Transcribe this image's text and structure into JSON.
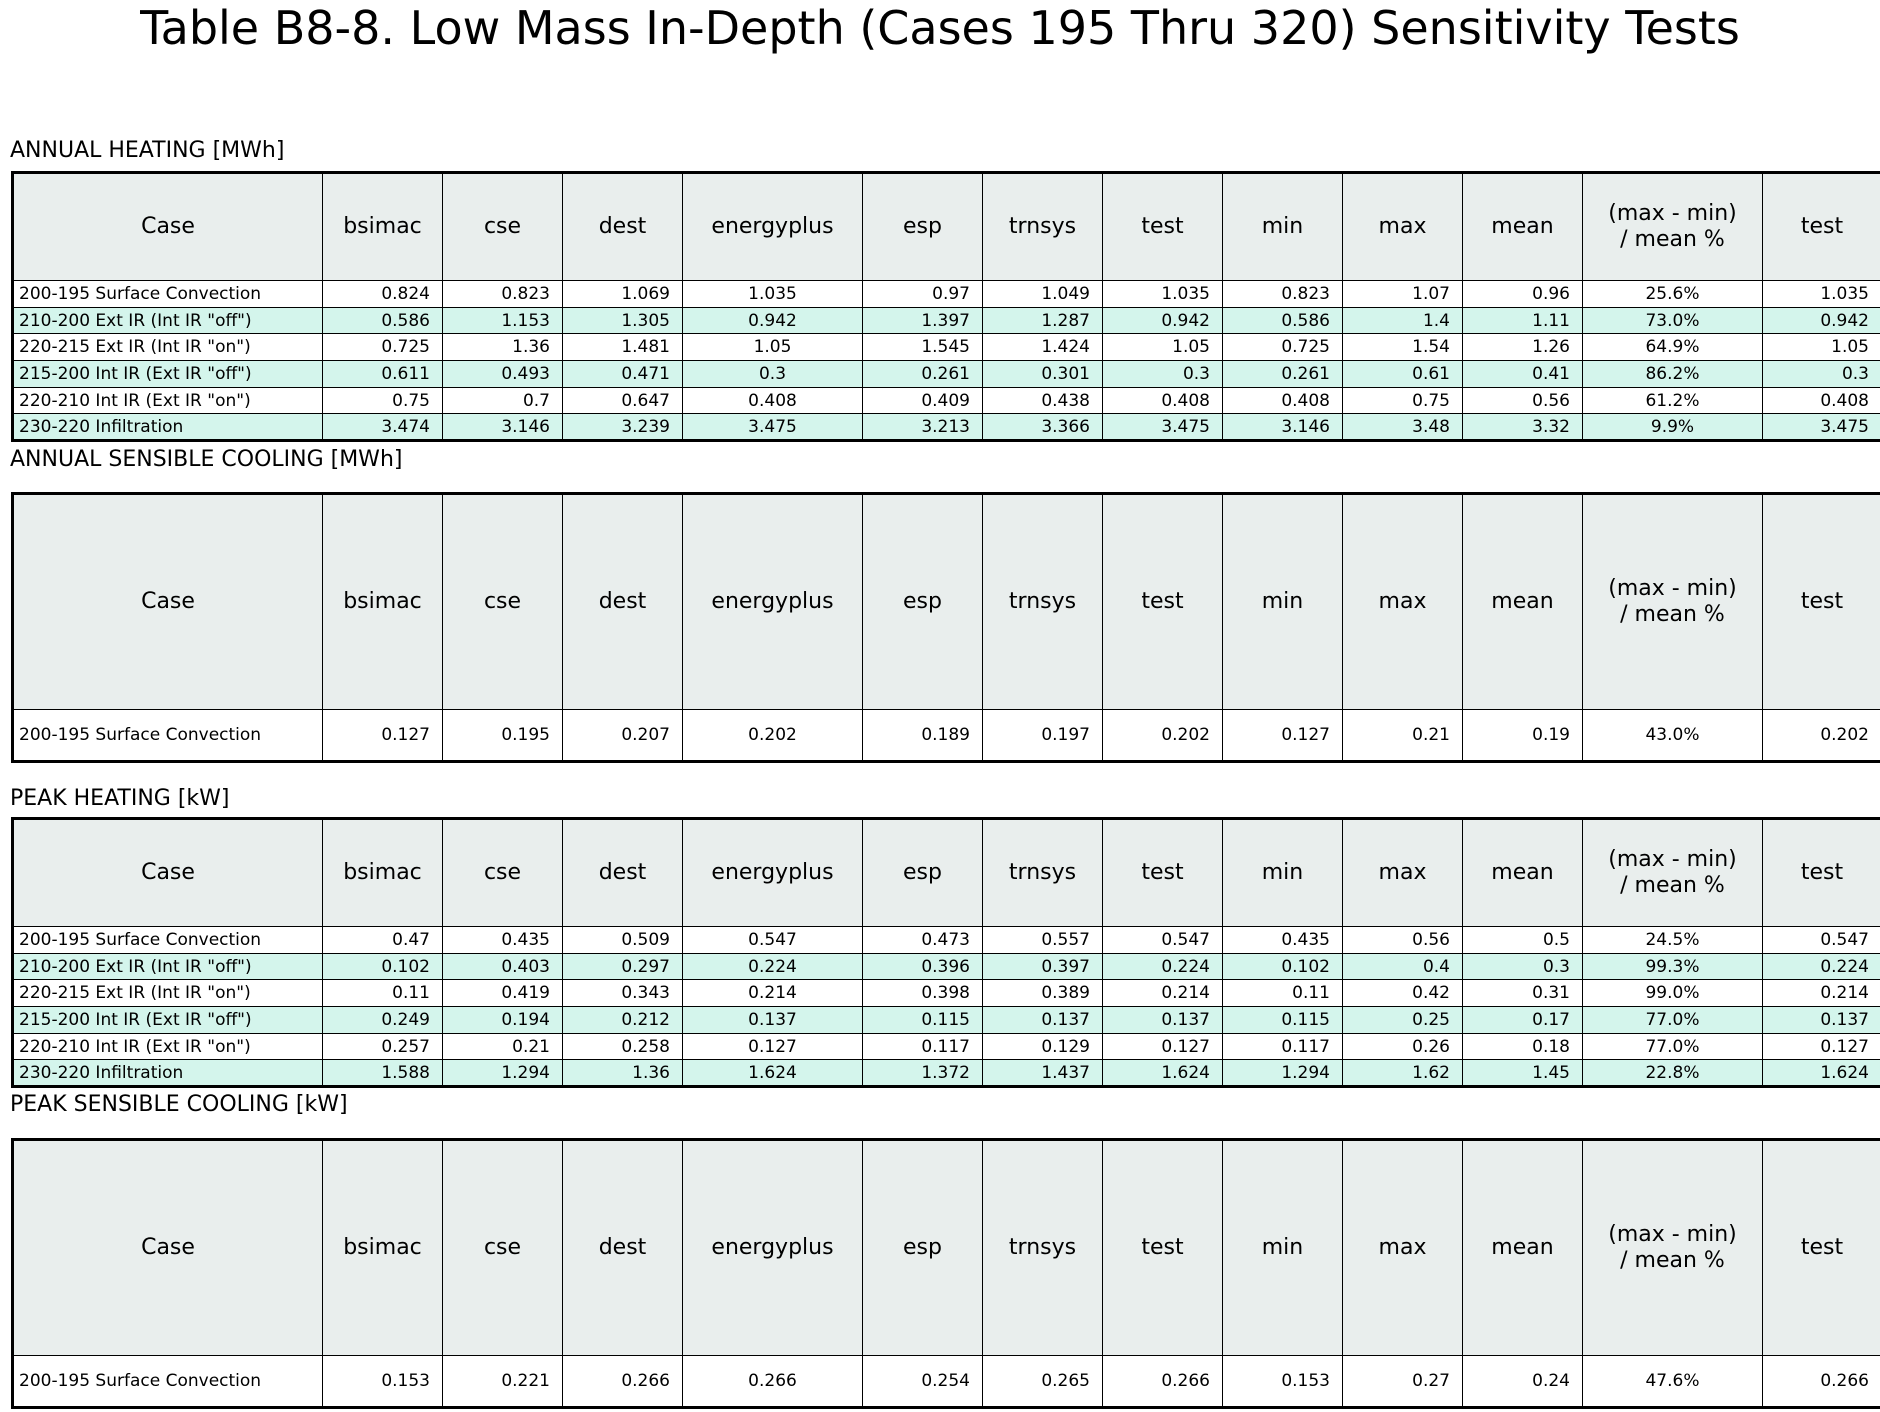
{
  "title": "Table B8-8. Low Mass In-Depth (Cases 195 Thru 320) Sensitivity Tests",
  "columns": [
    "Case",
    "bsimac",
    "cse",
    "dest",
    "energyplus",
    "esp",
    "trnsys",
    "test",
    "min",
    "max",
    "mean",
    "(max - min)\n/ mean %",
    "test"
  ],
  "sections": [
    {
      "label": "ANNUAL HEATING [MWh]",
      "rows": [
        [
          "200-195 Surface Convection",
          "0.824",
          "0.823",
          "1.069",
          "1.035",
          "0.97",
          "1.049",
          "1.035",
          "0.823",
          "1.07",
          "0.96",
          "25.6%",
          "1.035"
        ],
        [
          "210-200 Ext IR (Int IR \"off\")",
          "0.586",
          "1.153",
          "1.305",
          "0.942",
          "1.397",
          "1.287",
          "0.942",
          "0.586",
          "1.4",
          "1.11",
          "73.0%",
          "0.942"
        ],
        [
          "220-215 Ext IR (Int IR \"on\")",
          "0.725",
          "1.36",
          "1.481",
          "1.05",
          "1.545",
          "1.424",
          "1.05",
          "0.725",
          "1.54",
          "1.26",
          "64.9%",
          "1.05"
        ],
        [
          "215-200 Int IR (Ext IR \"off\")",
          "0.611",
          "0.493",
          "0.471",
          "0.3",
          "0.261",
          "0.301",
          "0.3",
          "0.261",
          "0.61",
          "0.41",
          "86.2%",
          "0.3"
        ],
        [
          "220-210 Int IR (Ext IR \"on\")",
          "0.75",
          "0.7",
          "0.647",
          "0.408",
          "0.409",
          "0.438",
          "0.408",
          "0.408",
          "0.75",
          "0.56",
          "61.2%",
          "0.408"
        ],
        [
          "230-220 Infiltration",
          "3.474",
          "3.146",
          "3.239",
          "3.475",
          "3.213",
          "3.366",
          "3.475",
          "3.146",
          "3.48",
          "3.32",
          "9.9%",
          "3.475"
        ]
      ]
    },
    {
      "label": "ANNUAL SENSIBLE COOLING [MWh]",
      "rows": [
        [
          "200-195 Surface Convection",
          "0.127",
          "0.195",
          "0.207",
          "0.202",
          "0.189",
          "0.197",
          "0.202",
          "0.127",
          "0.21",
          "0.19",
          "43.0%",
          "0.202"
        ]
      ]
    },
    {
      "label": "PEAK HEATING [kW]",
      "rows": [
        [
          "200-195 Surface Convection",
          "0.47",
          "0.435",
          "0.509",
          "0.547",
          "0.473",
          "0.557",
          "0.547",
          "0.435",
          "0.56",
          "0.5",
          "24.5%",
          "0.547"
        ],
        [
          "210-200 Ext IR (Int IR \"off\")",
          "0.102",
          "0.403",
          "0.297",
          "0.224",
          "0.396",
          "0.397",
          "0.224",
          "0.102",
          "0.4",
          "0.3",
          "99.3%",
          "0.224"
        ],
        [
          "220-215 Ext IR (Int IR \"on\")",
          "0.11",
          "0.419",
          "0.343",
          "0.214",
          "0.398",
          "0.389",
          "0.214",
          "0.11",
          "0.42",
          "0.31",
          "99.0%",
          "0.214"
        ],
        [
          "215-200 Int IR (Ext IR \"off\")",
          "0.249",
          "0.194",
          "0.212",
          "0.137",
          "0.115",
          "0.137",
          "0.137",
          "0.115",
          "0.25",
          "0.17",
          "77.0%",
          "0.137"
        ],
        [
          "220-210 Int IR (Ext IR \"on\")",
          "0.257",
          "0.21",
          "0.258",
          "0.127",
          "0.117",
          "0.129",
          "0.127",
          "0.117",
          "0.26",
          "0.18",
          "77.0%",
          "0.127"
        ],
        [
          "230-220 Infiltration",
          "1.588",
          "1.294",
          "1.36",
          "1.624",
          "1.372",
          "1.437",
          "1.624",
          "1.294",
          "1.62",
          "1.45",
          "22.8%",
          "1.624"
        ]
      ]
    },
    {
      "label": "PEAK SENSIBLE COOLING [kW]",
      "rows": [
        [
          "200-195 Surface Convection",
          "0.153",
          "0.221",
          "0.266",
          "0.266",
          "0.254",
          "0.265",
          "0.266",
          "0.153",
          "0.27",
          "0.24",
          "47.6%",
          "0.266"
        ]
      ]
    }
  ]
}
